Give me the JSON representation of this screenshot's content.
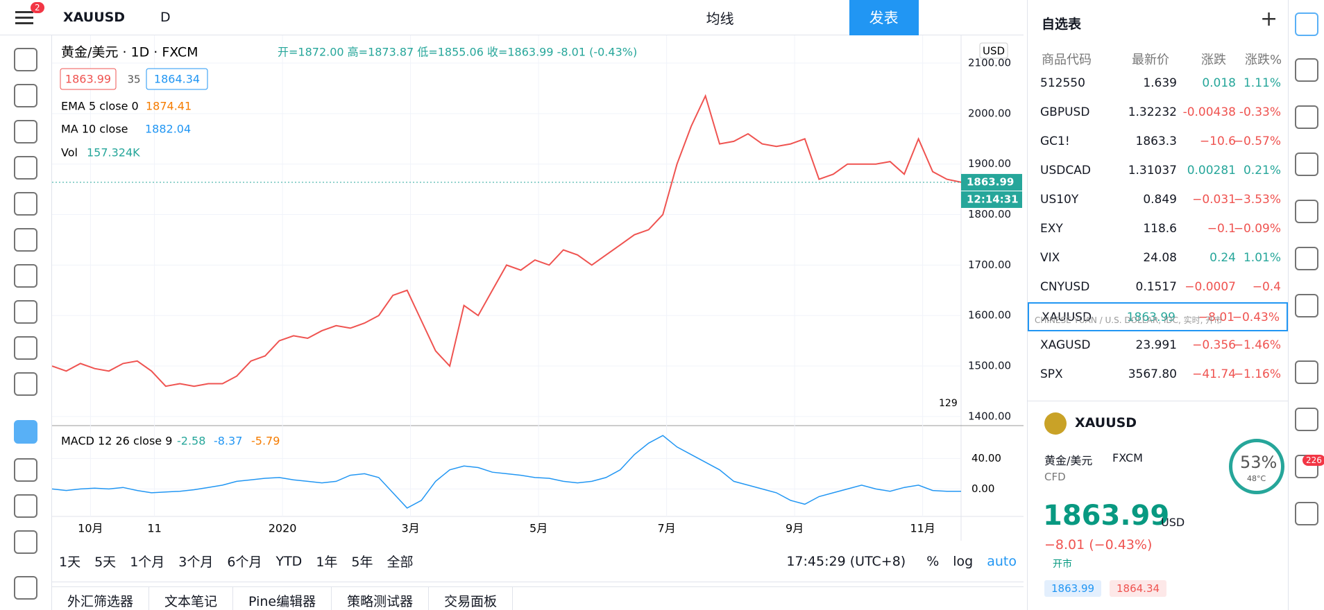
{
  "toolbar": {
    "symbol": "XAUUSD",
    "interval": "D",
    "indicators": "均线",
    "publish": "发表",
    "badge": "2"
  },
  "legend": {
    "name": "黄金/美元 · 1D · FXCM",
    "ohlc": "开=1872.00 高=1873.87 低=1855.06 收=1863.99 -8.01 (-0.43%)",
    "bid": "1863.99",
    "spread": "35",
    "ask": "1864.34",
    "ema": "EMA 5 close 0",
    "ema_value": "1874.41",
    "ma": "MA 10 close",
    "ma_value": "1882.04",
    "vol": "Vol",
    "vol_value": "157.324K",
    "macd": "MACD 12 26 close 9",
    "macd_v1": "-2.58",
    "macd_v2": "-8.37",
    "macd_v3": "-5.79"
  },
  "price_chart": {
    "currency": "USD",
    "last_label": "1863.99",
    "last_value": 1863.99,
    "countdown": "12:14:31",
    "events": "129",
    "ylim": [
      1382,
      2155
    ],
    "yticks": [
      {
        "value": 1400,
        "label": "1400.00"
      },
      {
        "value": 1500,
        "label": "1500.00"
      },
      {
        "value": 1600,
        "label": "1600.00"
      },
      {
        "value": 1700,
        "label": "1700.00"
      },
      {
        "value": 1800,
        "label": "1800.00"
      },
      {
        "value": 1900,
        "label": "1900.00"
      },
      {
        "value": 2000,
        "label": "2000.00"
      },
      {
        "value": 2100,
        "label": "2100.00"
      }
    ],
    "xlim": [
      -0.6,
      13.6
    ],
    "xticks": [
      {
        "value": 0,
        "label": "10月"
      },
      {
        "value": 1,
        "label": "11"
      },
      {
        "value": 3,
        "label": "2020"
      },
      {
        "value": 5,
        "label": "3月"
      },
      {
        "value": 7,
        "label": "5月"
      },
      {
        "value": 9,
        "label": "7月"
      },
      {
        "value": 11,
        "label": "9月"
      },
      {
        "value": 13,
        "label": "11月"
      }
    ],
    "values": [
      1500,
      1490,
      1505,
      1495,
      1490,
      1505,
      1510,
      1490,
      1460,
      1465,
      1460,
      1465,
      1465,
      1480,
      1510,
      1520,
      1550,
      1560,
      1555,
      1570,
      1580,
      1575,
      1585,
      1600,
      1640,
      1650,
      1590,
      1530,
      1500,
      1620,
      1600,
      1650,
      1700,
      1690,
      1710,
      1700,
      1730,
      1720,
      1700,
      1720,
      1740,
      1760,
      1770,
      1800,
      1900,
      1975,
      2035,
      1940,
      1945,
      1960,
      1940,
      1935,
      1940,
      1950,
      1870,
      1880,
      1900,
      1900,
      1900,
      1905,
      1880,
      1950,
      1885,
      1870,
      1864
    ]
  },
  "macd_chart": {
    "ylim": [
      -36,
      83
    ],
    "yticks": [
      {
        "value": 0,
        "label": "0.00"
      },
      {
        "value": 40,
        "label": "40.00"
      }
    ],
    "values": [
      0,
      -2,
      0,
      1,
      0,
      2,
      -2,
      -5,
      -4,
      -3,
      -1,
      2,
      5,
      10,
      12,
      14,
      15,
      12,
      10,
      8,
      10,
      18,
      20,
      15,
      -5,
      -25,
      -15,
      10,
      25,
      30,
      28,
      22,
      20,
      18,
      15,
      14,
      10,
      8,
      10,
      15,
      25,
      45,
      60,
      70,
      55,
      45,
      35,
      25,
      10,
      5,
      0,
      -5,
      -15,
      -20,
      -10,
      -5,
      0,
      5,
      0,
      -3,
      2,
      5,
      -2,
      -3,
      -3
    ]
  },
  "ranges": [
    "1天",
    "5天",
    "1个月",
    "3个月",
    "6个月",
    "YTD",
    "1年",
    "5年",
    "全部"
  ],
  "clock": "17:45:29 (UTC+8)",
  "scale_options": [
    "%",
    "log",
    "auto"
  ],
  "tabs": [
    "外汇筛选器",
    "文本笔记",
    "Pine编辑器",
    "策略测试器",
    "交易面板"
  ],
  "watchlist": {
    "title": "自选表",
    "columns": [
      "商品代码",
      "最新价",
      "涨跌",
      "涨跌%"
    ],
    "rows": [
      [
        "512550",
        "1.639",
        "0.018",
        "1.11%"
      ],
      [
        "GBPUSD",
        "1.32232",
        "-0.00438",
        "-0.33%"
      ],
      [
        "GC1!",
        "1863.3",
        "−10.6",
        "−0.57%"
      ],
      [
        "USDCAD",
        "1.31037",
        "0.00281",
        "0.21%"
      ],
      [
        "US10Y",
        "0.849",
        "−0.031",
        "−3.53%"
      ],
      [
        "EXY",
        "118.6",
        "−0.1",
        "−0.09%"
      ],
      [
        "VIX",
        "24.08",
        "0.24",
        "1.01%"
      ],
      [
        "CNYUSD",
        "0.1517",
        "−0.0007",
        "−0.4"
      ],
      [
        "XAUUSD",
        "1863.99",
        "−8.01",
        "−0.43%"
      ],
      [
        "XAGUSD",
        "23.991",
        "−0.356",
        "−1.46%"
      ],
      [
        "SPX",
        "3567.80",
        "−41.74",
        "−1.16%"
      ]
    ],
    "tooltip": "CHINESE YUAN / U.S. DOLLAR, IDC, 实时, 开市"
  },
  "detail": {
    "symbol": "XAUUSD",
    "name": "黄金/美元",
    "exchange": "FXCM",
    "kind": "CFD",
    "price": "1863.99",
    "currency": "USD",
    "change": "−8.01 (−0.43%)",
    "status": "开市",
    "bid": "1863.99",
    "ask": "1864.34",
    "gauge": "53%",
    "temp": "48°C"
  },
  "sidebar": {
    "badge": "226"
  }
}
